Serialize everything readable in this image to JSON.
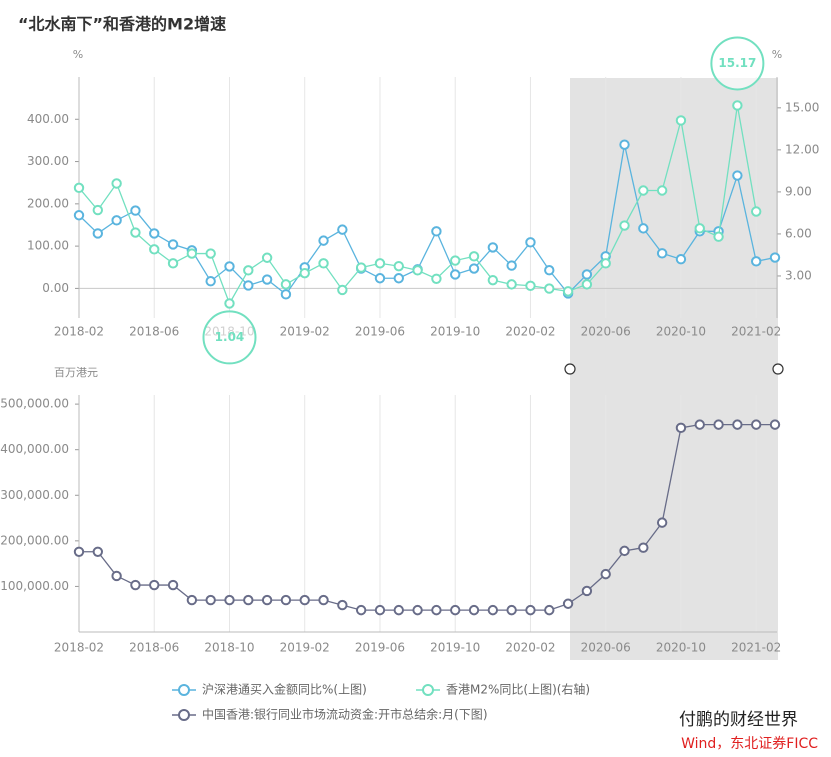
{
  "title": "“北水南下”和香港的M2增速",
  "chart_data": [
    {
      "type": "line",
      "y_unit": "%",
      "y2_unit": "%",
      "categories": [
        "2018-02",
        null,
        null,
        null,
        "2018-06",
        null,
        null,
        null,
        "2018-10",
        null,
        null,
        null,
        "2019-02",
        null,
        null,
        null,
        "2019-06",
        null,
        null,
        null,
        "2019-10",
        null,
        null,
        null,
        "2020-02",
        null,
        null,
        null,
        "2020-06",
        null,
        null,
        null,
        "2020-10",
        null,
        null,
        null,
        "2021-02",
        null
      ],
      "ylim": [
        -70,
        500
      ],
      "yticks": [
        {
          "value": 0,
          "label": "0.00"
        },
        {
          "value": 100,
          "label": "100.00"
        },
        {
          "value": 200,
          "label": "200.00"
        },
        {
          "value": 300,
          "label": "300.00"
        },
        {
          "value": 400,
          "label": "400.00"
        }
      ],
      "y2lim": [
        0,
        17.2
      ],
      "y2ticks": [
        {
          "value": 3,
          "label": "3.00"
        },
        {
          "value": 6,
          "label": "6.00"
        },
        {
          "value": 9,
          "label": "9.00"
        },
        {
          "value": 12,
          "label": "12.00"
        },
        {
          "value": 15,
          "label": "15.00"
        }
      ],
      "grid": true,
      "series": [
        {
          "name": "沪深港通买入金额同比%(上图)",
          "color": "#5ab4de",
          "axis": "y",
          "values": [
            173,
            130,
            161,
            184,
            130,
            104,
            90,
            17,
            52,
            7,
            21,
            -14,
            50,
            113,
            139,
            47,
            24,
            24,
            45,
            135,
            33,
            47,
            97,
            54,
            109,
            43,
            -12,
            33,
            76,
            340,
            142,
            83,
            69,
            135,
            135,
            267,
            64,
            73
          ]
        },
        {
          "name": "香港M2%同比(上图)(右轴)",
          "color": "#72e0c0",
          "axis": "y2",
          "mark_points": [
            "min",
            "max"
          ],
          "values": [
            9.29,
            7.7,
            9.6,
            6.1,
            4.9,
            3.9,
            4.6,
            4.6,
            1.04,
            3.4,
            4.3,
            2.4,
            3.2,
            3.9,
            2.0,
            3.6,
            3.9,
            3.7,
            3.4,
            2.8,
            4.1,
            4.4,
            2.7,
            2.4,
            2.3,
            2.1,
            1.9,
            2.4,
            3.9,
            6.6,
            9.1,
            9.1,
            14.1,
            6.4,
            5.8,
            15.17,
            7.6,
            null
          ]
        }
      ]
    },
    {
      "type": "line",
      "y_unit": "百万港元",
      "categories": [
        "2018-02",
        null,
        null,
        null,
        "2018-06",
        null,
        null,
        null,
        "2018-10",
        null,
        null,
        null,
        "2019-02",
        null,
        null,
        null,
        "2019-06",
        null,
        null,
        null,
        "2019-10",
        null,
        null,
        null,
        "2020-02",
        null,
        null,
        null,
        "2020-06",
        null,
        null,
        null,
        "2020-10",
        null,
        null,
        null,
        "2021-02",
        null
      ],
      "ylim": [
        0,
        520000
      ],
      "yticks": [
        {
          "value": 100000,
          "label": "100,000.00"
        },
        {
          "value": 200000,
          "label": "200,000.00"
        },
        {
          "value": 300000,
          "label": "300,000.00"
        },
        {
          "value": 400000,
          "label": "400,000.00"
        },
        {
          "value": 500000,
          "label": "500,000.00"
        }
      ],
      "grid": true,
      "series": [
        {
          "name": "中国香港:银行同业市场流动资金:开市总结余:月(下图)",
          "color": "#686c88",
          "axis": "y",
          "values": [
            176000,
            176000,
            123000,
            103000,
            103000,
            103000,
            70000,
            70000,
            70000,
            70000,
            70000,
            70000,
            70000,
            70000,
            59000,
            48000,
            48000,
            48000,
            48000,
            48000,
            48000,
            48000,
            48000,
            48000,
            48000,
            48000,
            62000,
            90000,
            127000,
            178000,
            185000,
            240000,
            448000,
            455000,
            455000,
            455000,
            455000,
            455000
          ]
        }
      ]
    }
  ],
  "source": {
    "wechat": "付鹏的财经世界",
    "credit": "Wind，东北证券FICC"
  }
}
